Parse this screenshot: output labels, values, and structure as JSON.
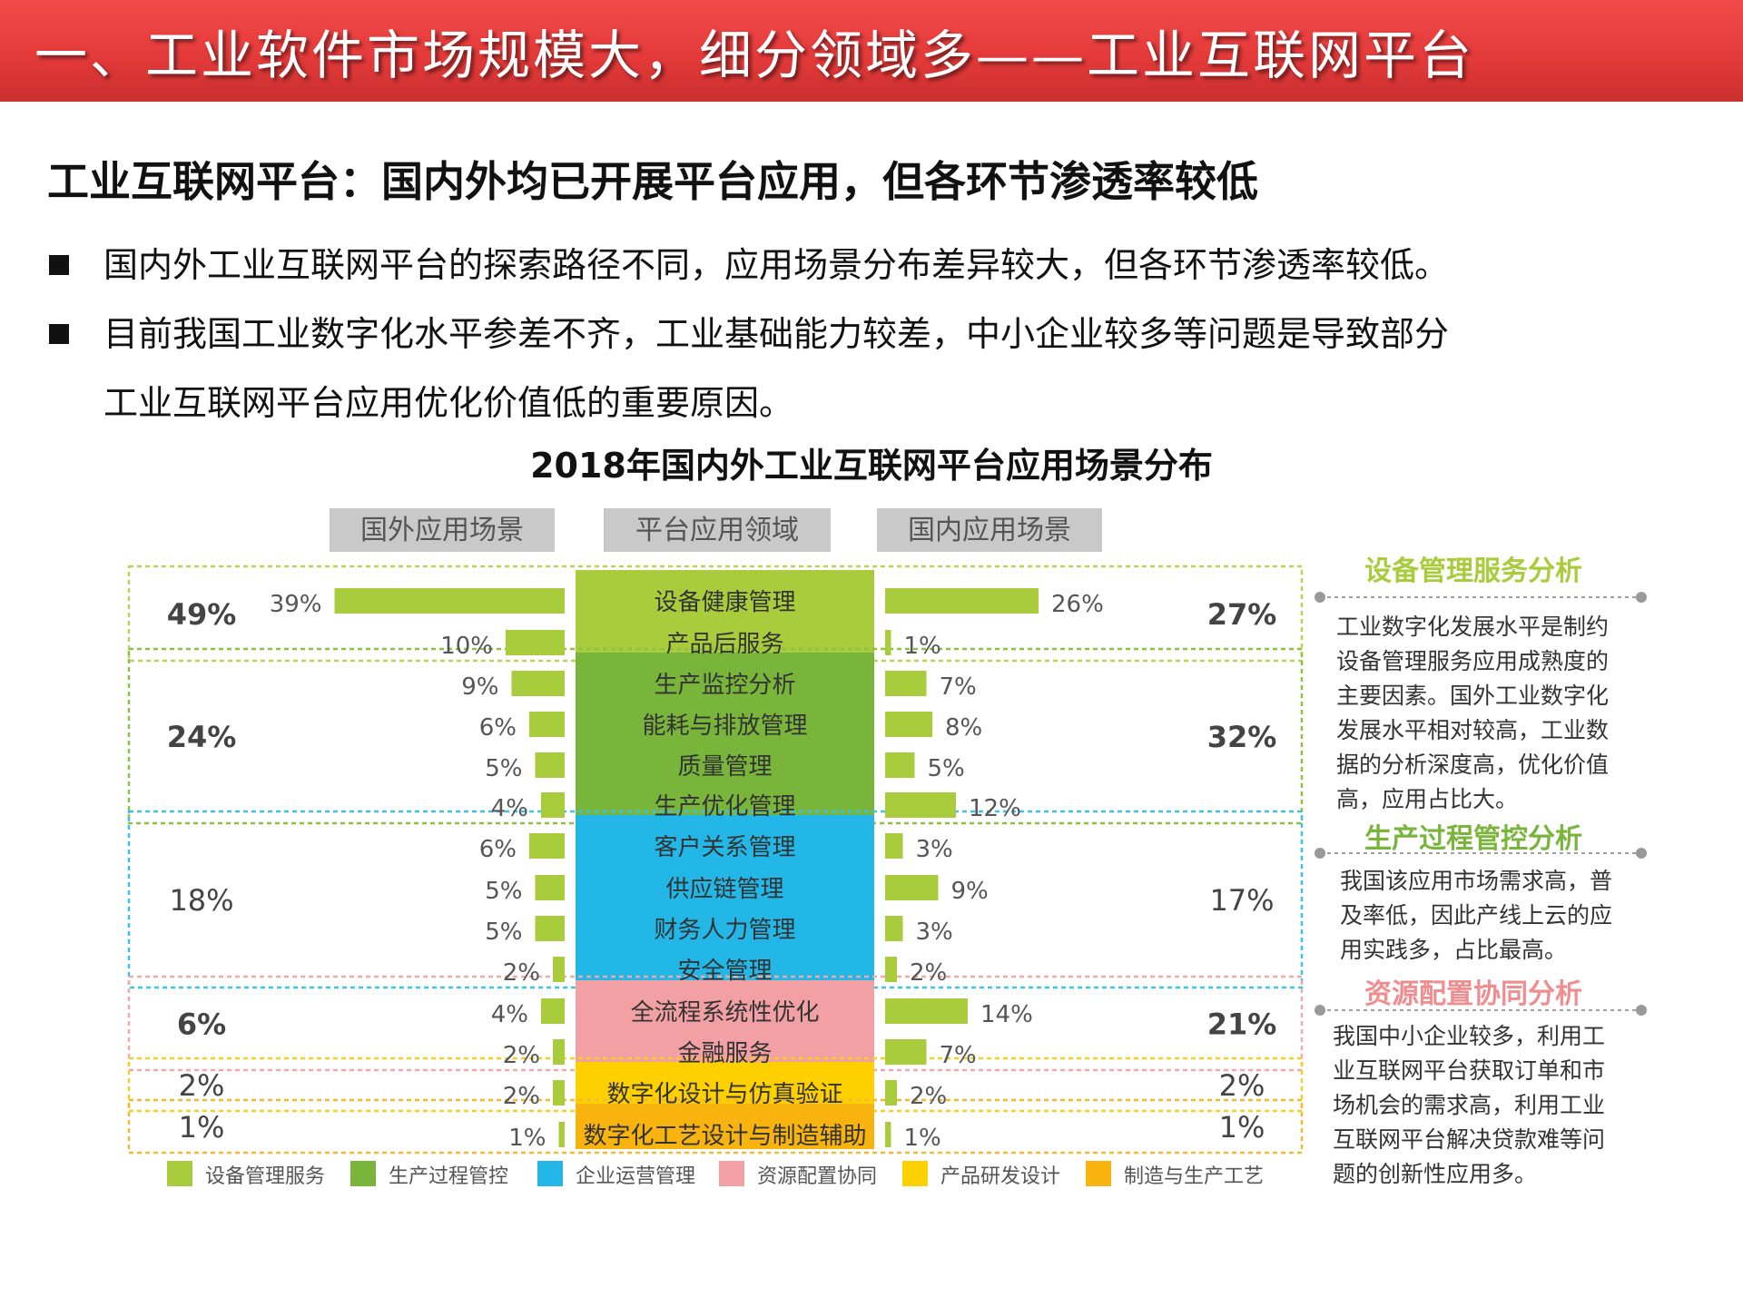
{
  "header": {
    "title": "一、工业软件市场规模大，细分领域多——工业互联网平台"
  },
  "subtitle": "工业互联网平台：国内外均已开展平台应用，但各环节渗透率较低",
  "bullets": [
    {
      "line1": "国内外工业互联网平台的探索路径不同，应用场景分布差异较大，但各环节渗透率较低。"
    },
    {
      "line1": "目前我国工业数字化水平参差不齐，工业基础能力较差，中小企业较多等问题是导致部分",
      "line2": "工业互联网平台应用优化价值低的重要原因。"
    }
  ],
  "chart_data": {
    "type": "bar",
    "title": "2018年国内外工业互联网平台应用场景分布",
    "column_headers": {
      "foreign": "国外应用场景",
      "platform": "平台应用领域",
      "domestic": "国内应用场景"
    },
    "categories": [
      "设备健康管理",
      "产品后服务",
      "生产监控分析",
      "能耗与排放管理",
      "质量管理",
      "生产优化管理",
      "客户关系管理",
      "供应链管理",
      "财务人力管理",
      "安全管理",
      "全流程系统性优化",
      "金融服务",
      "数字化设计与仿真验证",
      "数字化工艺设计与制造辅助"
    ],
    "series": [
      {
        "name": "国外应用场景",
        "values": [
          39,
          10,
          9,
          6,
          5,
          4,
          6,
          5,
          5,
          2,
          4,
          2,
          2,
          1
        ],
        "labels": [
          "39%",
          "10%",
          "9%",
          "6%",
          "5%",
          "4%",
          "6%",
          "5%",
          "5%",
          "2%",
          "4%",
          "2%",
          "2%",
          "1%"
        ]
      },
      {
        "name": "国内应用场景",
        "values": [
          26,
          1,
          7,
          8,
          5,
          12,
          3,
          9,
          3,
          2,
          14,
          7,
          2,
          1
        ],
        "labels": [
          "26%",
          "1%",
          "7%",
          "8%",
          "5%",
          "12%",
          "3%",
          "9%",
          "3%",
          "2%",
          "14%",
          "7%",
          "2%",
          "1%"
        ]
      }
    ],
    "groups": [
      {
        "name": "设备管理服务",
        "color": "#a8cc3c",
        "border": "#b9d35a",
        "foreign_total": "49%",
        "domestic_total": "27%",
        "rows": [
          0,
          1
        ],
        "bold": true
      },
      {
        "name": "生产过程管控",
        "color": "#78b53a",
        "border": "#8dc045",
        "foreign_total": "24%",
        "domestic_total": "32%",
        "rows": [
          2,
          3,
          4,
          5
        ],
        "bold": true
      },
      {
        "name": "企业运营管理",
        "color": "#22b7e6",
        "border": "#3cc1e9",
        "foreign_total": "18%",
        "domestic_total": "17%",
        "rows": [
          6,
          7,
          8,
          9
        ],
        "bold": false
      },
      {
        "name": "资源配置协同",
        "color": "#f2a0a3",
        "border": "#f0a9ab",
        "foreign_total": "6%",
        "domestic_total": "21%",
        "rows": [
          10,
          11
        ],
        "bold": true
      },
      {
        "name": "产品研发设计",
        "color": "#ffd000",
        "border": "#f6cf22",
        "foreign_total": "2%",
        "domestic_total": "2%",
        "rows": [
          12
        ],
        "bold": false
      },
      {
        "name": "制造与生产工艺",
        "color": "#f8b30e",
        "border": "#f4b932",
        "foreign_total": "1%",
        "domestic_total": "1%",
        "rows": [
          13
        ],
        "bold": false
      }
    ],
    "bar_color": "#a8cc3c",
    "legend": [
      "设备管理服务",
      "生产过程管控",
      "企业运营管理",
      "资源配置协同",
      "产品研发设计",
      "制造与生产工艺"
    ],
    "legend_position": "bottom"
  },
  "side_panels": [
    {
      "title": "设备管理服务分析",
      "color": "#a8cc3c",
      "lines": [
        "工业数字化发展水平是制约",
        "设备管理服务应用成熟度的",
        "主要因素。国外工业数字化",
        "发展水平相对较高，工业数",
        "据的分析深度高，优化价值",
        "高，应用占比大。"
      ]
    },
    {
      "title": "生产过程管控分析",
      "color": "#78b53a",
      "lines": [
        "我国该应用市场需求高，普",
        "及率低，因此产线上云的应",
        "用实践多，占比最高。"
      ]
    },
    {
      "title": "资源配置协同分析",
      "color": "#f08d8f",
      "lines": [
        "我国中小企业较多，利用工",
        "业互联网平台获取订单和市",
        "场机会的需求高，利用工业",
        "互联网平台解决贷款难等问",
        "题的创新性应用多。"
      ]
    }
  ]
}
